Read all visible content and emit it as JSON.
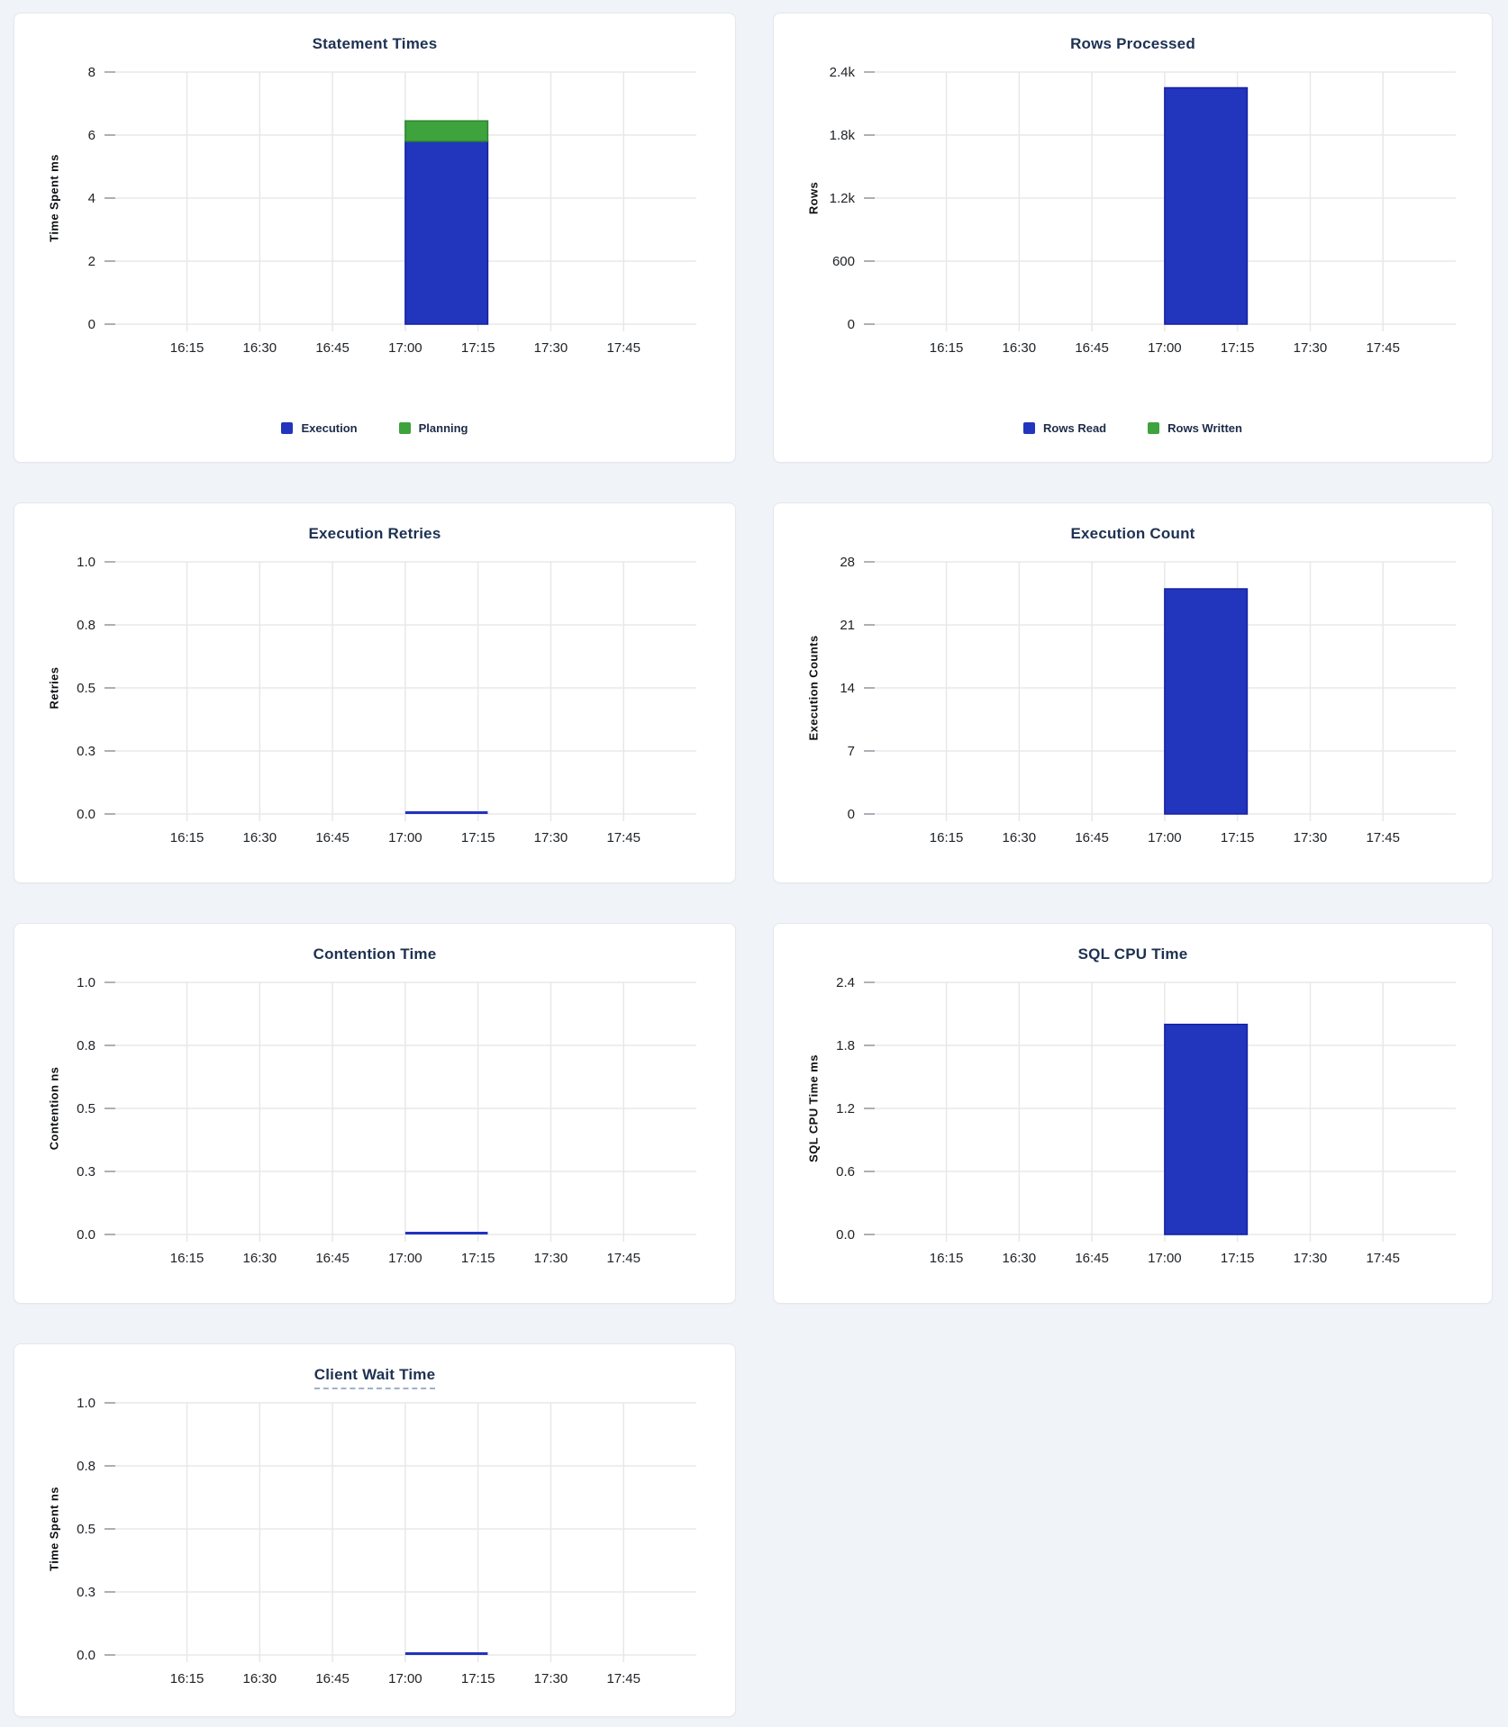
{
  "page": {
    "background_color": "#f0f4f8",
    "card_background": "#ffffff",
    "card_border_color": "#e4e7eb"
  },
  "colors": {
    "blue": "#2136BC",
    "blue_stroke": "#151FA3",
    "green": "#3EA23D",
    "green_stroke": "#2C8430",
    "line_blue": "#2232BE",
    "grid": "#e8e8e8",
    "tick_stub": "#9aa0a6",
    "axis_text": "#202327",
    "title_text": "#1e3152",
    "legend_text": "#1d2b49"
  },
  "x_axis": {
    "domain_minutes": [
      958,
      1080
    ],
    "ticks_minutes": [
      975,
      990,
      1005,
      1020,
      1035,
      1050,
      1065
    ],
    "tick_labels": [
      "16:15",
      "16:30",
      "16:45",
      "17:00",
      "17:15",
      "17:30",
      "17:45"
    ]
  },
  "chart_data": [
    {
      "id": "statement-times",
      "type": "bar",
      "title": "Statement Times",
      "ylabel": "Time Spent ms",
      "ymax": 8,
      "yticks": [
        {
          "value": 0,
          "label": "0"
        },
        {
          "value": 2,
          "label": "2"
        },
        {
          "value": 4,
          "label": "4"
        },
        {
          "value": 6,
          "label": "6"
        },
        {
          "value": 8,
          "label": "8"
        }
      ],
      "stacked": true,
      "bar_minutes": [
        1020,
        1037
      ],
      "series": [
        {
          "name": "Execution",
          "value": 5.8,
          "color": "blue"
        },
        {
          "name": "Planning",
          "value": 0.65,
          "color": "green"
        }
      ],
      "legend": [
        {
          "label": "Execution",
          "color": "blue"
        },
        {
          "label": "Planning",
          "color": "green"
        }
      ]
    },
    {
      "id": "rows-processed",
      "type": "bar",
      "title": "Rows Processed",
      "ylabel": "Rows",
      "ymax": 2400,
      "yticks": [
        {
          "value": 0,
          "label": "0"
        },
        {
          "value": 600,
          "label": "600"
        },
        {
          "value": 1200,
          "label": "1.2k"
        },
        {
          "value": 1800,
          "label": "1.8k"
        },
        {
          "value": 2400,
          "label": "2.4k"
        }
      ],
      "stacked": true,
      "bar_minutes": [
        1020,
        1037
      ],
      "series": [
        {
          "name": "Rows Read",
          "value": 2250,
          "color": "blue"
        },
        {
          "name": "Rows Written",
          "value": 0,
          "color": "green"
        }
      ],
      "legend": [
        {
          "label": "Rows Read",
          "color": "blue"
        },
        {
          "label": "Rows Written",
          "color": "green"
        }
      ]
    },
    {
      "id": "execution-retries",
      "type": "line",
      "title": "Execution Retries",
      "ylabel": "Retries",
      "ymax": 1,
      "yticks": [
        {
          "value": 0,
          "label": "0.0"
        },
        {
          "value": 0.25,
          "label": "0.3"
        },
        {
          "value": 0.5,
          "label": "0.5"
        },
        {
          "value": 0.75,
          "label": "0.8"
        },
        {
          "value": 1,
          "label": "1.0"
        }
      ],
      "line": {
        "value": 0,
        "minutes": [
          1020,
          1037
        ],
        "color": "line_blue"
      }
    },
    {
      "id": "execution-count",
      "type": "bar",
      "title": "Execution Count",
      "ylabel": "Execution Counts",
      "ymax": 28,
      "yticks": [
        {
          "value": 0,
          "label": "0"
        },
        {
          "value": 7,
          "label": "7"
        },
        {
          "value": 14,
          "label": "14"
        },
        {
          "value": 21,
          "label": "21"
        },
        {
          "value": 28,
          "label": "28"
        }
      ],
      "stacked": false,
      "bar_minutes": [
        1020,
        1037
      ],
      "series": [
        {
          "name": "Execution Count",
          "value": 25,
          "color": "blue"
        }
      ]
    },
    {
      "id": "contention-time",
      "type": "line",
      "title": "Contention Time",
      "ylabel": "Contention ns",
      "ymax": 1,
      "yticks": [
        {
          "value": 0,
          "label": "0.0"
        },
        {
          "value": 0.25,
          "label": "0.3"
        },
        {
          "value": 0.5,
          "label": "0.5"
        },
        {
          "value": 0.75,
          "label": "0.8"
        },
        {
          "value": 1,
          "label": "1.0"
        }
      ],
      "line": {
        "value": 0,
        "minutes": [
          1020,
          1037
        ],
        "color": "line_blue"
      }
    },
    {
      "id": "sql-cpu-time",
      "type": "bar",
      "title": "SQL CPU Time",
      "ylabel": "SQL CPU Time ms",
      "ymax": 2.4,
      "yticks": [
        {
          "value": 0,
          "label": "0.0"
        },
        {
          "value": 0.6,
          "label": "0.6"
        },
        {
          "value": 1.2,
          "label": "1.2"
        },
        {
          "value": 1.8,
          "label": "1.8"
        },
        {
          "value": 2.4,
          "label": "2.4"
        }
      ],
      "stacked": false,
      "bar_minutes": [
        1020,
        1037
      ],
      "series": [
        {
          "name": "SQL CPU Time",
          "value": 2.0,
          "color": "blue"
        }
      ]
    },
    {
      "id": "client-wait-time",
      "type": "line",
      "title": "Client Wait Time",
      "title_underlined": true,
      "ylabel": "Time Spent ns",
      "ymax": 1,
      "yticks": [
        {
          "value": 0,
          "label": "0.0"
        },
        {
          "value": 0.25,
          "label": "0.3"
        },
        {
          "value": 0.5,
          "label": "0.5"
        },
        {
          "value": 0.75,
          "label": "0.8"
        },
        {
          "value": 1,
          "label": "1.0"
        }
      ],
      "line": {
        "value": 0,
        "minutes": [
          1020,
          1037
        ],
        "color": "line_blue"
      }
    }
  ]
}
